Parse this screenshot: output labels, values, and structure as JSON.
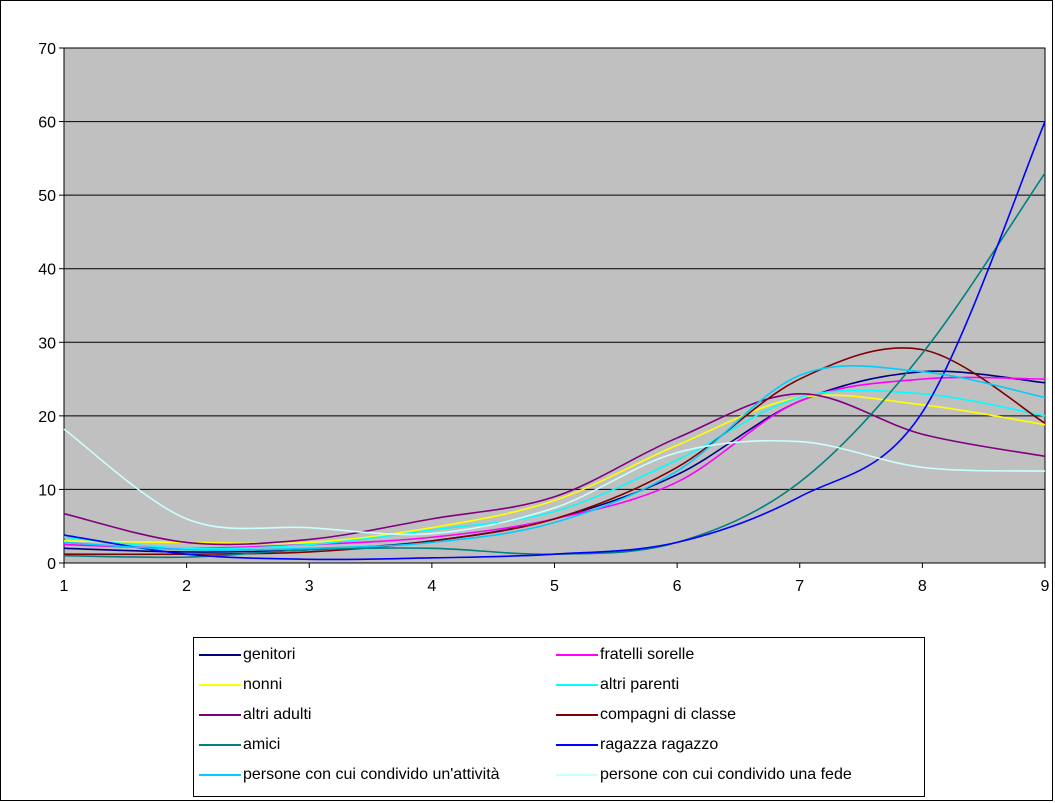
{
  "chart_data": {
    "type": "line",
    "title": "",
    "xlabel": "",
    "ylabel": "",
    "xlim": [
      1,
      9
    ],
    "ylim": [
      0,
      70
    ],
    "x_ticks": [
      "1",
      "2",
      "3",
      "4",
      "5",
      "6",
      "7",
      "8",
      "9"
    ],
    "y_ticks": [
      "0",
      "10",
      "20",
      "30",
      "40",
      "50",
      "60",
      "70"
    ],
    "grid": "horizontal",
    "plot_background": "#c0c0c0",
    "legend_position": "bottom",
    "x": [
      1,
      2,
      3,
      4,
      5,
      6,
      7,
      8,
      9
    ],
    "series": [
      {
        "name": "genitori",
        "color": "#000080",
        "values": [
          2.0,
          1.5,
          1.8,
          3.0,
          6.0,
          12.0,
          22.0,
          26.0,
          24.5
        ]
      },
      {
        "name": "fratelli sorelle",
        "color": "#ff00ff",
        "values": [
          2.5,
          2.0,
          2.5,
          3.5,
          6.0,
          11.0,
          22.0,
          25.0,
          25.0
        ]
      },
      {
        "name": "nonni",
        "color": "#ffff00",
        "values": [
          3.0,
          2.8,
          2.8,
          4.8,
          8.5,
          16.0,
          22.5,
          21.5,
          18.8
        ]
      },
      {
        "name": "altri parenti",
        "color": "#00ffff",
        "values": [
          3.5,
          2.0,
          2.5,
          4.5,
          7.0,
          14.0,
          22.5,
          23.0,
          20.0
        ]
      },
      {
        "name": "altri adulti",
        "color": "#800080",
        "values": [
          6.7,
          2.8,
          3.2,
          6.0,
          9.0,
          17.0,
          23.0,
          17.5,
          14.5
        ]
      },
      {
        "name": "compagni di classe",
        "color": "#800000",
        "values": [
          1.2,
          1.2,
          1.5,
          3.0,
          6.0,
          13.0,
          25.0,
          29.0,
          19.0
        ]
      },
      {
        "name": "amici",
        "color": "#008080",
        "values": [
          1.0,
          0.8,
          1.8,
          2.0,
          1.2,
          2.8,
          11.0,
          28.5,
          53.0
        ]
      },
      {
        "name": "ragazza ragazzo",
        "color": "#0000ff",
        "values": [
          3.8,
          1.2,
          0.5,
          0.7,
          1.2,
          2.8,
          9.0,
          20.5,
          60.0
        ]
      },
      {
        "name": "persone con cui condivido un'attività",
        "color": "#00ccff",
        "values": [
          2.8,
          1.8,
          2.0,
          2.8,
          5.5,
          12.5,
          25.5,
          26.0,
          22.5
        ]
      },
      {
        "name": "persone con cui condivido una fede",
        "color": "#ccffff",
        "values": [
          18.2,
          6.0,
          4.8,
          4.0,
          7.5,
          15.0,
          16.5,
          13.0,
          12.5
        ]
      }
    ]
  }
}
